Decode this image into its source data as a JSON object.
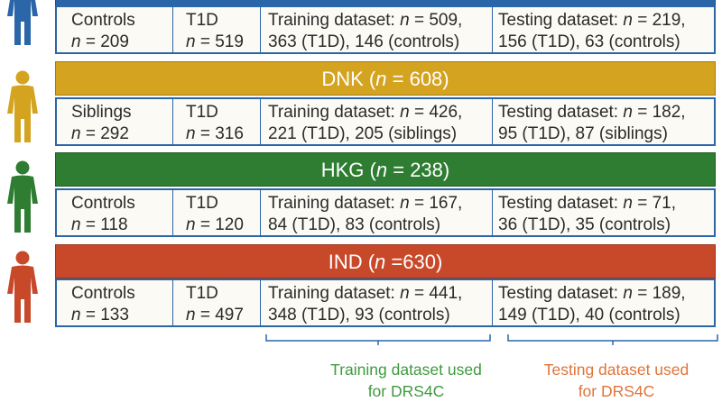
{
  "n_symbol": "n",
  "colors": {
    "blue": "#2a66a8",
    "yellow": "#d4a31f",
    "green": "#2e7d32",
    "red": "#c8492a",
    "training_text": "#3f9a3f",
    "testing_text": "#e0743a"
  },
  "groups": [
    {
      "banner_prefix": "",
      "banner_value": "",
      "control_label": "Controls",
      "control_eq": " = 209",
      "t1d_label": "T1D",
      "t1d_eq": " = 519",
      "train_l1_pre": "Training dataset: ",
      "train_l1_post": " = 509,",
      "train_l2": "363 (T1D), 146 (controls)",
      "test_l1_pre": "Testing dataset: ",
      "test_l1_post": " = 219,",
      "test_l2": "156 (T1D), 63 (controls)"
    },
    {
      "banner_prefix": "DNK (",
      "banner_value": " = 608)",
      "control_label": "Siblings",
      "control_eq": " = 292",
      "t1d_label": "T1D",
      "t1d_eq": " = 316",
      "train_l1_pre": "Training dataset: ",
      "train_l1_post": " = 426,",
      "train_l2": "221 (T1D), 205 (siblings)",
      "test_l1_pre": "Testing dataset: ",
      "test_l1_post": " = 182,",
      "test_l2": "95 (T1D), 87 (siblings)"
    },
    {
      "banner_prefix": "HKG (",
      "banner_value": " = 238)",
      "control_label": "Controls",
      "control_eq": " = 118",
      "t1d_label": "T1D",
      "t1d_eq": " = 120",
      "train_l1_pre": "Training dataset: ",
      "train_l1_post": " = 167,",
      "train_l2": "84 (T1D), 83 (controls)",
      "test_l1_pre": "Testing dataset: ",
      "test_l1_post": " = 71,",
      "test_l2": "36 (T1D), 35 (controls)"
    },
    {
      "banner_prefix": "IND (",
      "banner_value": " =630)",
      "control_label": "Controls",
      "control_eq": " = 133",
      "t1d_label": "T1D",
      "t1d_eq": " = 497",
      "train_l1_pre": "Training dataset: ",
      "train_l1_post": " = 441,",
      "train_l2": "348 (T1D), 93 (controls)",
      "test_l1_pre": "Testing dataset: ",
      "test_l1_post": " = 189,",
      "test_l2": "149 (T1D), 40 (controls)"
    }
  ],
  "footer": {
    "training_line1": "Training dataset used",
    "training_line2": "for DRS4C",
    "testing_line1": "Testing dataset used",
    "testing_line2": "for DRS4C"
  }
}
